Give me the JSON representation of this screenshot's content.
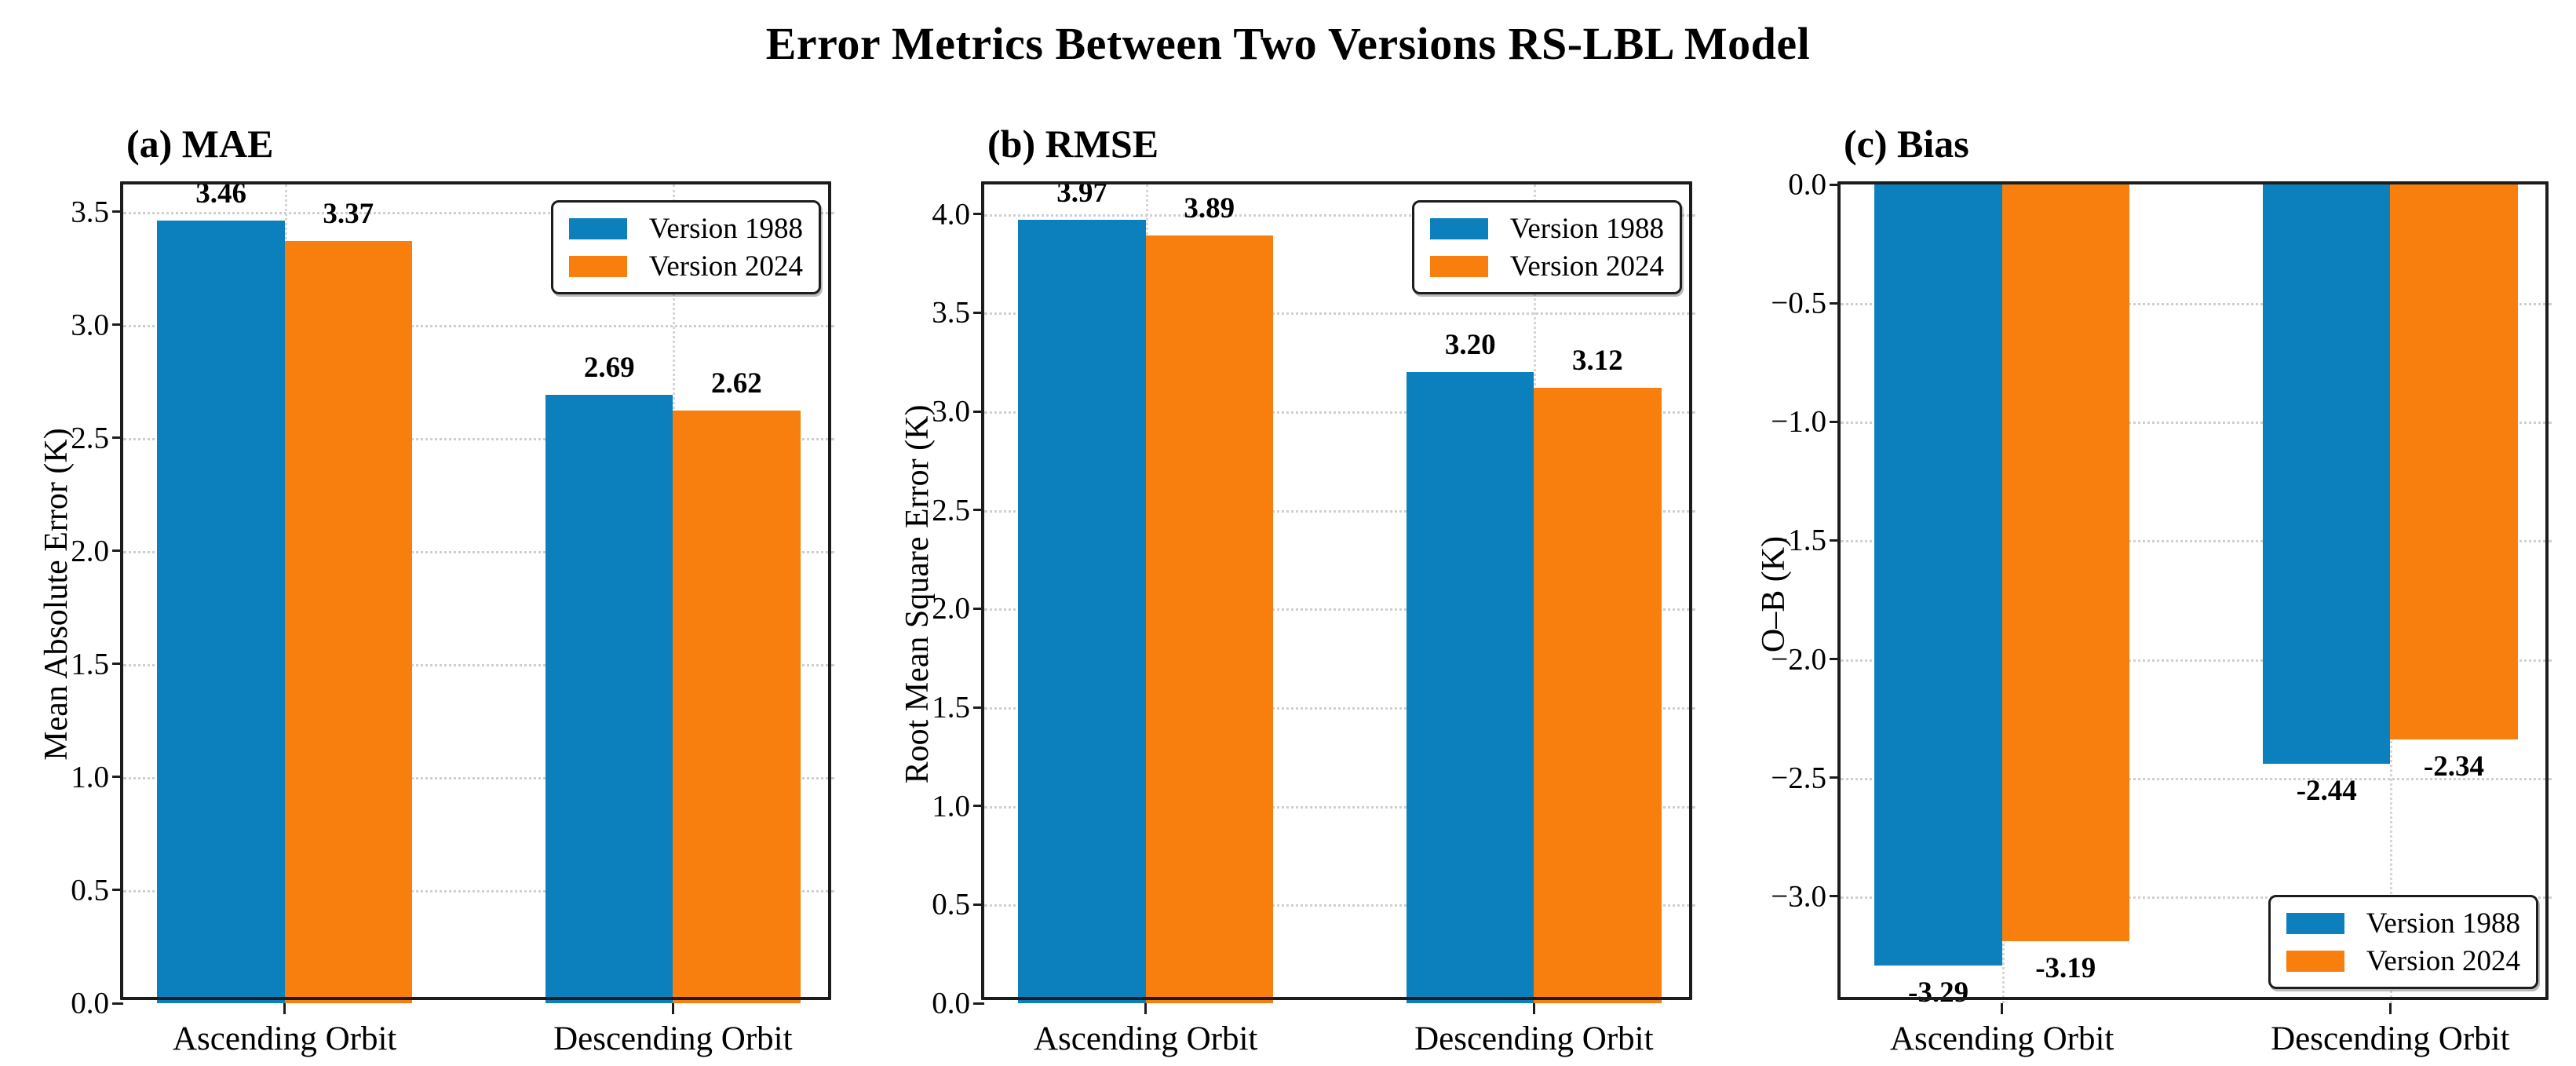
{
  "figure_title": "Error Metrics Between Two Versions RS-LBL Model",
  "colors": {
    "version_1988_blue": "#0b80bd",
    "version_2024_orange": "#f87e0d",
    "spine": "#1c1c1c",
    "grid": "#cfcfcf"
  },
  "chart_data": [
    {
      "type": "bar",
      "panel_label": "(a) MAE",
      "categories": [
        "Ascending Orbit",
        "Descending Orbit"
      ],
      "series": [
        {
          "name": "Version 1988",
          "color": "#0b80bd",
          "values": [
            3.46,
            2.69
          ]
        },
        {
          "name": "Version 2024",
          "color": "#f87e0d",
          "values": [
            3.37,
            2.62
          ]
        }
      ],
      "ylabel": "Mean Absolute Error (K)",
      "ylim": [
        0,
        3.62
      ],
      "yticks": [
        0.0,
        0.5,
        1.0,
        1.5,
        2.0,
        2.5,
        3.0,
        3.5
      ],
      "grid": true,
      "legend_position": "top-right"
    },
    {
      "type": "bar",
      "panel_label": "(b) RMSE",
      "categories": [
        "Ascending Orbit",
        "Descending Orbit"
      ],
      "series": [
        {
          "name": "Version 1988",
          "color": "#0b80bd",
          "values": [
            3.97,
            3.2
          ]
        },
        {
          "name": "Version 2024",
          "color": "#f87e0d",
          "values": [
            3.89,
            3.12
          ]
        }
      ],
      "ylabel": "Root Mean Square Error (K)",
      "ylim": [
        0,
        4.15
      ],
      "yticks": [
        0.0,
        0.5,
        1.0,
        1.5,
        2.0,
        2.5,
        3.0,
        3.5,
        4.0
      ],
      "grid": true,
      "legend_position": "top-right"
    },
    {
      "type": "bar",
      "panel_label": "(c) Bias",
      "categories": [
        "Ascending Orbit",
        "Descending Orbit"
      ],
      "series": [
        {
          "name": "Version 1988",
          "color": "#0b80bd",
          "values": [
            -3.29,
            -2.44
          ]
        },
        {
          "name": "Version 2024",
          "color": "#f87e0d",
          "values": [
            -3.19,
            -2.34
          ]
        }
      ],
      "ylabel": "O–B (K)",
      "ylim": [
        -3.45,
        0
      ],
      "yticks": [
        0.0,
        -0.5,
        -1.0,
        -1.5,
        -2.0,
        -2.5,
        -3.0
      ],
      "grid": true,
      "legend_position": "bottom-right"
    }
  ]
}
